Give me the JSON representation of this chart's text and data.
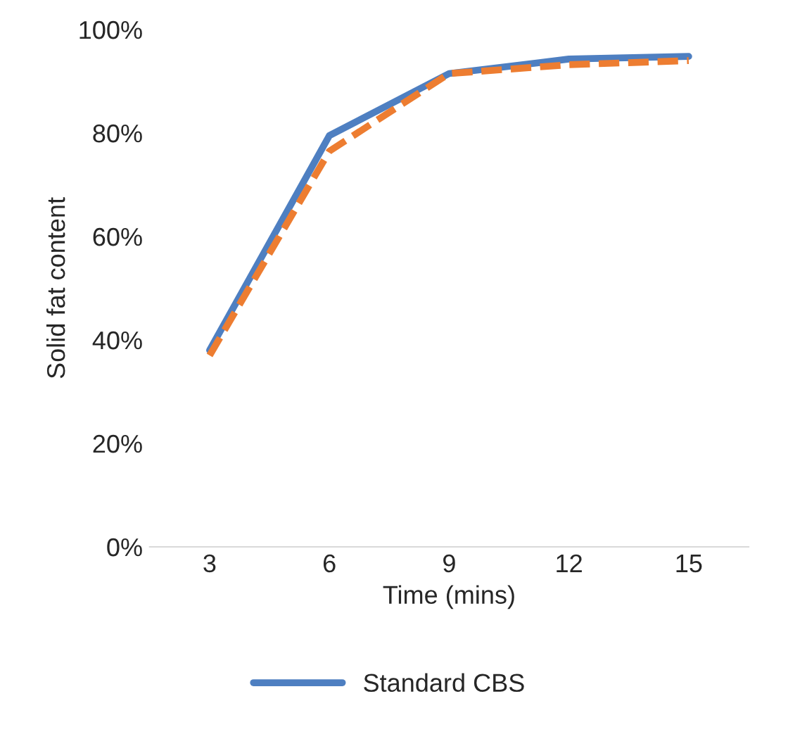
{
  "chart_data": {
    "type": "line",
    "xlabel": "Time (mins)",
    "ylabel": "Solid fat content",
    "categories": [
      "3",
      "6",
      "9",
      "12",
      "15"
    ],
    "series": [
      {
        "name": "Standard CBS",
        "color": "#4e7fc1",
        "line_style": "solid",
        "values": [
          38,
          79.5,
          91.5,
          94.3,
          94.8
        ]
      },
      {
        "color": "#ed7d31",
        "line_style": "dashed",
        "values": [
          37,
          76.5,
          91.5,
          93.2,
          94
        ]
      }
    ],
    "ylim": [
      0,
      100
    ],
    "yticks": [
      {
        "value": 0,
        "label": "0%"
      },
      {
        "value": 20,
        "label": "20%"
      },
      {
        "value": 40,
        "label": "40%"
      },
      {
        "value": 60,
        "label": "60%"
      },
      {
        "value": 80,
        "label": "80%"
      },
      {
        "value": 100,
        "label": "100%"
      }
    ],
    "grid": false,
    "legend": "bottom",
    "marker": "none"
  }
}
